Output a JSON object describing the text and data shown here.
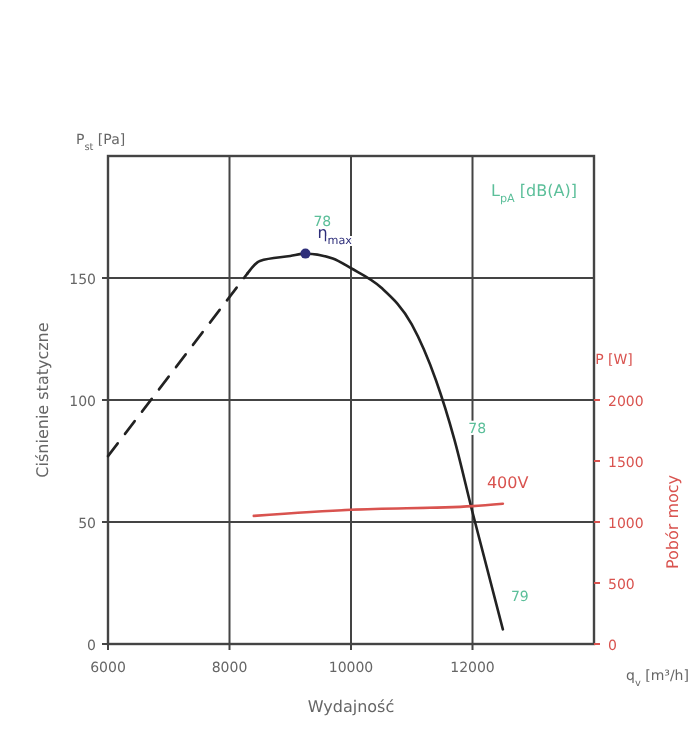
{
  "chart_data": {
    "type": "line",
    "xlabel": "Wydajność",
    "ylabel": "Ciśnienie statyczne",
    "y2label": "Pobór mocy",
    "xlim": [
      6000,
      14000
    ],
    "xticks": [
      6000,
      8000,
      10000,
      12000
    ],
    "ylim": [
      0,
      200
    ],
    "yticks": [
      0,
      50,
      100,
      150
    ],
    "y2lim": [
      0,
      4000
    ],
    "y2ticks": [
      0,
      500,
      1000,
      1500,
      2000
    ],
    "grid": true,
    "series": [
      {
        "color": "#222222",
        "line_style": "dashed",
        "x": [
          6000,
          8300
        ],
        "values": [
          77,
          152
        ]
      },
      {
        "color": "#222222",
        "line_style": "solid",
        "x": [
          8300,
          8500,
          9000,
          9250,
          9700,
          10000,
          10500,
          11000,
          11400,
          11700,
          12000,
          12500
        ],
        "values": [
          152,
          157,
          159,
          160,
          158,
          154,
          146,
          131,
          108,
          84,
          54,
          6
        ]
      },
      {
        "type": "scatter",
        "name": "η$_{max}$",
        "color": "#2e2e7a",
        "marker": "circle",
        "x": [
          9250
        ],
        "values": [
          160
        ]
      },
      {
        "name": "400V",
        "color": "#d9534f",
        "axis": "y2",
        "line_style": "solid",
        "x": [
          8400,
          10000,
          12000,
          12500
        ],
        "values": [
          1050,
          1100,
          1130,
          1150
        ]
      }
    ],
    "annotations": [
      "P$_{st}$ [Pa]",
      "q$_{v}$ [m³/h]",
      "P [W]",
      "L$_{pA}$ [dB(A)]",
      {
        "text": "78",
        "x": 9250,
        "y": 160
      },
      {
        "text": "78",
        "x": 11800,
        "y": 75
      },
      {
        "text": "79",
        "x": 12500,
        "y": 6
      }
    ]
  }
}
